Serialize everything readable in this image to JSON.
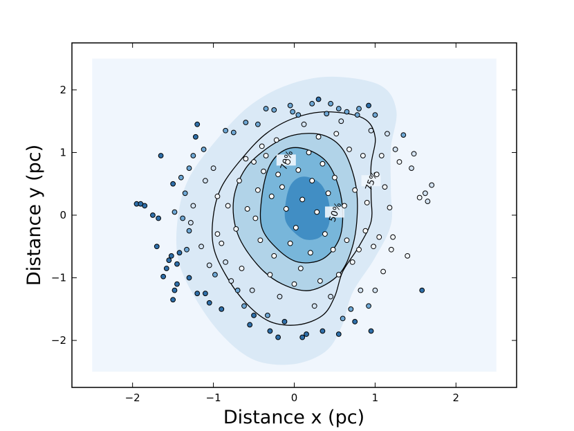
{
  "chart_data": {
    "type": "scatter",
    "title": "",
    "xlabel": "Distance x (pc)",
    "ylabel": "Distance y (pc)",
    "xlim": [
      -2.75,
      2.75
    ],
    "ylim": [
      -2.75,
      2.75
    ],
    "xticks": [
      -2,
      -1,
      0,
      1,
      2
    ],
    "yticks": [
      -2,
      -1,
      0,
      1,
      2
    ],
    "xtick_labels": [
      "−2",
      "−1",
      "0",
      "1",
      "2"
    ],
    "ytick_labels": [
      "−2",
      "−1",
      "0",
      "1",
      "2"
    ],
    "grid": false,
    "legend": false,
    "density_background": {
      "extent": {
        "x": [
          -2.5,
          2.5
        ],
        "y": [
          -2.5,
          2.5
        ]
      },
      "colormap": [
        "#f0f6fd",
        "#d6e6f4",
        "#aacfe5",
        "#6fb0d7",
        "#3787c0"
      ],
      "peak": [
        0.25,
        0.05
      ]
    },
    "contours": [
      {
        "label": "50%",
        "points": [
          [
            -0.4,
            0.3
          ],
          [
            -0.3,
            0.8
          ],
          [
            -0.1,
            1.05
          ],
          [
            0.15,
            1.05
          ],
          [
            0.4,
            0.85
          ],
          [
            0.55,
            0.45
          ],
          [
            0.6,
            0.0
          ],
          [
            0.55,
            -0.4
          ],
          [
            0.35,
            -0.7
          ],
          [
            0.05,
            -0.75
          ],
          [
            -0.2,
            -0.55
          ],
          [
            -0.4,
            -0.2
          ]
        ],
        "label_at": [
          0.5,
          0.05
        ]
      },
      {
        "label": "70%",
        "points": [
          [
            -0.75,
            0.25
          ],
          [
            -0.6,
            0.75
          ],
          [
            -0.3,
            1.1
          ],
          [
            0.0,
            1.28
          ],
          [
            0.35,
            1.28
          ],
          [
            0.6,
            1.05
          ],
          [
            0.75,
            0.55
          ],
          [
            0.78,
            0.05
          ],
          [
            0.72,
            -0.5
          ],
          [
            0.55,
            -0.95
          ],
          [
            0.2,
            -1.2
          ],
          [
            -0.15,
            -1.1
          ],
          [
            -0.45,
            -0.8
          ],
          [
            -0.7,
            -0.3
          ]
        ],
        "label_at": [
          -0.1,
          0.88
        ]
      },
      {
        "label": "75%",
        "points": [
          [
            -1.0,
            0.0
          ],
          [
            -0.9,
            0.45
          ],
          [
            -0.65,
            0.9
          ],
          [
            -0.35,
            1.3
          ],
          [
            0.0,
            1.55
          ],
          [
            0.4,
            1.65
          ],
          [
            0.85,
            1.55
          ],
          [
            1.0,
            1.25
          ],
          [
            0.95,
            0.8
          ],
          [
            0.95,
            0.3
          ],
          [
            0.95,
            -0.1
          ],
          [
            0.8,
            -0.5
          ],
          [
            0.6,
            -0.9
          ],
          [
            0.5,
            -1.3
          ],
          [
            0.35,
            -1.6
          ],
          [
            0.05,
            -1.75
          ],
          [
            -0.3,
            -1.7
          ],
          [
            -0.6,
            -1.4
          ],
          [
            -0.85,
            -0.95
          ],
          [
            -1.0,
            -0.5
          ]
        ],
        "label_at": [
          0.95,
          0.55
        ]
      }
    ],
    "series": [
      {
        "values": [
          [
            -1.95,
            0.18
          ],
          [
            -1.9,
            0.18
          ],
          [
            -1.85,
            0.15
          ],
          [
            -1.75,
            0.0
          ],
          [
            -1.68,
            -0.05
          ],
          [
            -1.65,
            0.95
          ],
          [
            -1.7,
            -0.5
          ],
          [
            -1.62,
            -0.98
          ],
          [
            -1.58,
            -0.85
          ],
          [
            -1.55,
            -0.72
          ],
          [
            -1.5,
            -1.35
          ],
          [
            -1.52,
            -0.65
          ],
          [
            -1.48,
            0.05
          ],
          [
            -1.45,
            -0.78
          ],
          [
            -1.42,
            -0.6
          ],
          [
            -1.4,
            0.6
          ],
          [
            -1.35,
            0.35
          ],
          [
            -1.33,
            -0.55
          ],
          [
            -1.3,
            -0.25
          ],
          [
            -1.28,
            -0.12
          ],
          [
            -1.25,
            0.95
          ],
          [
            -1.22,
            1.25
          ],
          [
            -1.2,
            1.45
          ],
          [
            -1.15,
            -0.5
          ],
          [
            -1.12,
            1.05
          ],
          [
            -1.1,
            -1.25
          ],
          [
            -1.05,
            -1.4
          ],
          [
            -1.05,
            -0.8
          ],
          [
            -0.98,
            -0.95
          ],
          [
            -0.95,
            -0.3
          ],
          [
            -0.9,
            -0.45
          ],
          [
            -0.85,
            -0.75
          ],
          [
            -0.82,
            0.15
          ],
          [
            -0.78,
            -1.05
          ],
          [
            -0.75,
            1.32
          ],
          [
            -0.72,
            -0.22
          ],
          [
            -0.7,
            -1.2
          ],
          [
            -0.68,
            0.55
          ],
          [
            -0.65,
            -0.85
          ],
          [
            -0.62,
            -1.45
          ],
          [
            -0.6,
            0.9
          ],
          [
            -0.58,
            0.1
          ],
          [
            -0.55,
            -1.75
          ],
          [
            -0.52,
            -1.2
          ],
          [
            -0.5,
            0.85
          ],
          [
            -0.48,
            -0.05
          ],
          [
            -0.45,
            0.4
          ],
          [
            -0.42,
            -0.4
          ],
          [
            -0.4,
            1.1
          ],
          [
            -0.38,
            0.7
          ],
          [
            -0.35,
            0.95
          ],
          [
            -0.33,
            -1.6
          ],
          [
            -0.3,
            -0.95
          ],
          [
            -0.28,
            0.3
          ],
          [
            -0.25,
            -0.65
          ],
          [
            -0.22,
            1.2
          ],
          [
            -0.2,
            0.65
          ],
          [
            -0.18,
            -1.3
          ],
          [
            -0.15,
            0.45
          ],
          [
            -0.12,
            -1.7
          ],
          [
            -0.1,
            0.1
          ],
          [
            -0.08,
            0.85
          ],
          [
            -0.05,
            -0.45
          ],
          [
            -0.02,
            1.65
          ],
          [
            0.0,
            -1.1
          ],
          [
            0.02,
            -0.2
          ],
          [
            0.05,
            0.72
          ],
          [
            0.08,
            -0.85
          ],
          [
            0.1,
            0.25
          ],
          [
            0.12,
            1.45
          ],
          [
            0.15,
            -1.9
          ],
          [
            0.18,
            1.0
          ],
          [
            0.2,
            -0.6
          ],
          [
            0.22,
            0.55
          ],
          [
            0.25,
            -1.45
          ],
          [
            0.28,
            0.05
          ],
          [
            0.3,
            1.25
          ],
          [
            0.32,
            -1.05
          ],
          [
            0.35,
            0.82
          ],
          [
            0.38,
            -0.3
          ],
          [
            0.4,
            1.62
          ],
          [
            0.42,
            0.35
          ],
          [
            0.45,
            -1.3
          ],
          [
            0.48,
            -0.55
          ],
          [
            0.5,
            0.6
          ],
          [
            0.52,
            1.3
          ],
          [
            0.55,
            -0.95
          ],
          [
            0.58,
            1.5
          ],
          [
            0.6,
            -1.65
          ],
          [
            0.62,
            0.15
          ],
          [
            0.65,
            -0.4
          ],
          [
            0.68,
            1.05
          ],
          [
            0.7,
            -1.5
          ],
          [
            0.72,
            -0.75
          ],
          [
            0.75,
            0.4
          ],
          [
            0.78,
            1.6
          ],
          [
            0.8,
            -0.55
          ],
          [
            0.82,
            -1.2
          ],
          [
            0.85,
            0.95
          ],
          [
            0.88,
            -0.25
          ],
          [
            0.9,
            0.2
          ],
          [
            0.92,
            -1.45
          ],
          [
            0.95,
            1.35
          ],
          [
            0.98,
            -0.5
          ],
          [
            1.0,
            -1.2
          ],
          [
            1.02,
            0.65
          ],
          [
            1.05,
            -0.35
          ],
          [
            1.08,
            0.95
          ],
          [
            1.1,
            -0.9
          ],
          [
            1.12,
            0.45
          ],
          [
            1.15,
            1.3
          ],
          [
            1.18,
            0.12
          ],
          [
            1.2,
            -0.55
          ],
          [
            1.22,
            -0.35
          ],
          [
            1.25,
            1.05
          ],
          [
            1.3,
            0.85
          ],
          [
            1.35,
            1.28
          ],
          [
            1.4,
            -0.65
          ],
          [
            1.45,
            0.75
          ],
          [
            1.48,
            0.98
          ],
          [
            1.55,
            0.28
          ],
          [
            1.58,
            -1.2
          ],
          [
            1.62,
            0.35
          ],
          [
            1.65,
            0.22
          ],
          [
            1.7,
            0.48
          ],
          [
            -0.35,
            1.7
          ],
          [
            -0.25,
            1.68
          ],
          [
            -0.05,
            1.75
          ],
          [
            0.05,
            1.6
          ],
          [
            0.22,
            1.78
          ],
          [
            0.3,
            1.85
          ],
          [
            0.45,
            1.78
          ],
          [
            0.55,
            1.7
          ],
          [
            0.65,
            1.65
          ],
          [
            0.8,
            1.7
          ],
          [
            0.92,
            1.75
          ],
          [
            1.0,
            1.6
          ],
          [
            -0.45,
            1.45
          ],
          [
            -0.6,
            1.48
          ],
          [
            -0.85,
            1.35
          ],
          [
            -0.3,
            -1.85
          ],
          [
            -0.2,
            -1.95
          ],
          [
            0.1,
            -1.95
          ],
          [
            0.35,
            -1.85
          ],
          [
            0.55,
            -1.9
          ],
          [
            0.75,
            -1.7
          ],
          [
            0.95,
            -1.85
          ],
          [
            -0.5,
            -1.6
          ],
          [
            -0.9,
            -1.5
          ],
          [
            -1.2,
            -1.25
          ],
          [
            -1.48,
            -1.2
          ],
          [
            -1.3,
            -1.0
          ],
          [
            -1.45,
            -1.1
          ],
          [
            -1.1,
            0.55
          ],
          [
            -1.0,
            0.75
          ],
          [
            -0.95,
            0.3
          ],
          [
            -1.25,
            0.15
          ],
          [
            -1.38,
            -0.05
          ],
          [
            -1.3,
            0.75
          ],
          [
            -1.5,
            0.5
          ]
        ]
      }
    ]
  }
}
